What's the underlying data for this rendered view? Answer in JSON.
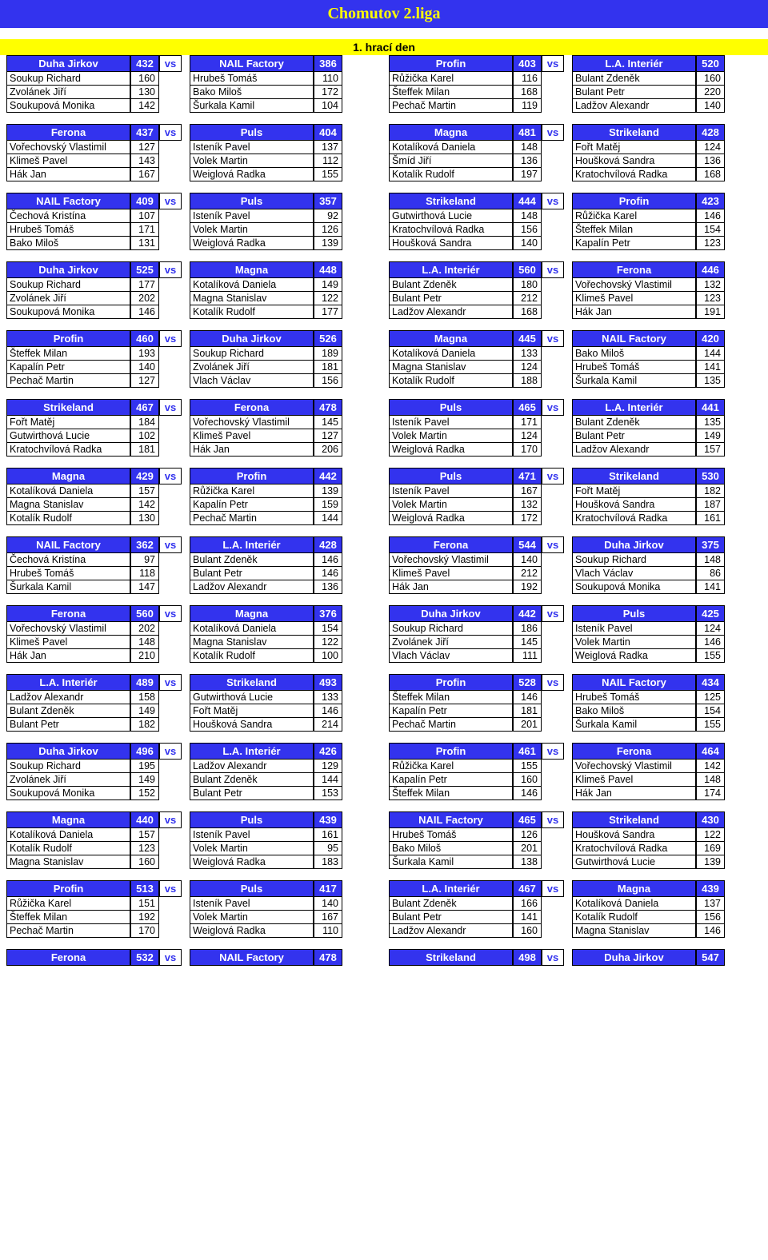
{
  "title": "Chomutov 2.liga",
  "day": "1. hrací den",
  "vs": "vs",
  "left_matches": [
    {
      "ta": "Duha Jirkov",
      "sa": 432,
      "tb": "NAIL Factory",
      "sb": 386,
      "pa": [
        [
          "Soukup Richard",
          160
        ],
        [
          "Zvolánek Jiří",
          130
        ],
        [
          "Soukupová Monika",
          142
        ]
      ],
      "pb": [
        [
          "Hrubeš Tomáš",
          110
        ],
        [
          "Bako Miloš",
          172
        ],
        [
          "Šurkala Kamil",
          104
        ]
      ]
    },
    {
      "ta": "Ferona",
      "sa": 437,
      "tb": "Puls",
      "sb": 404,
      "pa": [
        [
          "Vořechovský Vlastimil",
          127
        ],
        [
          "Klimeš Pavel",
          143
        ],
        [
          "Hák Jan",
          167
        ]
      ],
      "pb": [
        [
          "Isteník Pavel",
          137
        ],
        [
          "Volek Martin",
          112
        ],
        [
          "Weiglová Radka",
          155
        ]
      ]
    },
    {
      "ta": "NAIL Factory",
      "sa": 409,
      "tb": "Puls",
      "sb": 357,
      "pa": [
        [
          "Čechová Kristína",
          107
        ],
        [
          "Hrubeš Tomáš",
          171
        ],
        [
          "Bako Miloš",
          131
        ]
      ],
      "pb": [
        [
          "Isteník Pavel",
          92
        ],
        [
          "Volek Martin",
          126
        ],
        [
          "Weiglová Radka",
          139
        ]
      ]
    },
    {
      "ta": "Duha Jirkov",
      "sa": 525,
      "tb": "Magna",
      "sb": 448,
      "pa": [
        [
          "Soukup Richard",
          177
        ],
        [
          "Zvolánek Jiří",
          202
        ],
        [
          "Soukupová Monika",
          146
        ]
      ],
      "pb": [
        [
          "Kotalíková Daniela",
          149
        ],
        [
          "Magna Stanislav",
          122
        ],
        [
          "Kotalík Rudolf",
          177
        ]
      ]
    },
    {
      "ta": "Profin",
      "sa": 460,
      "tb": "Duha Jirkov",
      "sb": 526,
      "pa": [
        [
          "Šteffek Milan",
          193
        ],
        [
          "Kapalín Petr",
          140
        ],
        [
          "Pechač Martin",
          127
        ]
      ],
      "pb": [
        [
          "Soukup Richard",
          189
        ],
        [
          "Zvolánek Jiří",
          181
        ],
        [
          "Vlach Václav",
          156
        ]
      ]
    },
    {
      "ta": "Strikeland",
      "sa": 467,
      "tb": "Ferona",
      "sb": 478,
      "pa": [
        [
          "Fořt Matěj",
          184
        ],
        [
          "Gutwirthová Lucie",
          102
        ],
        [
          "Kratochvílová Radka",
          181
        ]
      ],
      "pb": [
        [
          "Vořechovský Vlastimil",
          145
        ],
        [
          "Klimeš Pavel",
          127
        ],
        [
          "Hák Jan",
          206
        ]
      ]
    },
    {
      "ta": "Magna",
      "sa": 429,
      "tb": "Profin",
      "sb": 442,
      "pa": [
        [
          "Kotalíková Daniela",
          157
        ],
        [
          "Magna Stanislav",
          142
        ],
        [
          "Kotalík Rudolf",
          130
        ]
      ],
      "pb": [
        [
          "Růžička Karel",
          139
        ],
        [
          "Kapalín Petr",
          159
        ],
        [
          "Pechač Martin",
          144
        ]
      ]
    },
    {
      "ta": "NAIL Factory",
      "sa": 362,
      "tb": "L.A. Interiér",
      "sb": 428,
      "pa": [
        [
          "Čechová Kristína",
          97
        ],
        [
          "Hrubeš Tomáš",
          118
        ],
        [
          "Šurkala Kamil",
          147
        ]
      ],
      "pb": [
        [
          "Bulant Zdeněk",
          146
        ],
        [
          "Bulant Petr",
          146
        ],
        [
          "Ladžov Alexandr",
          136
        ]
      ]
    },
    {
      "ta": "Ferona",
      "sa": 560,
      "tb": "Magna",
      "sb": 376,
      "pa": [
        [
          "Vořechovský Vlastimil",
          202
        ],
        [
          "Klimeš Pavel",
          148
        ],
        [
          "Hák Jan",
          210
        ]
      ],
      "pb": [
        [
          "Kotalíková Daniela",
          154
        ],
        [
          "Magna Stanislav",
          122
        ],
        [
          "Kotalík Rudolf",
          100
        ]
      ]
    },
    {
      "ta": "L.A. Interiér",
      "sa": 489,
      "tb": "Strikeland",
      "sb": 493,
      "pa": [
        [
          "Ladžov Alexandr",
          158
        ],
        [
          "Bulant Zdeněk",
          149
        ],
        [
          "Bulant Petr",
          182
        ]
      ],
      "pb": [
        [
          "Gutwirthová Lucie",
          133
        ],
        [
          "Fořt Matěj",
          146
        ],
        [
          "Houšková Sandra",
          214
        ]
      ]
    },
    {
      "ta": "Duha Jirkov",
      "sa": 496,
      "tb": "L.A. Interiér",
      "sb": 426,
      "pa": [
        [
          "Soukup Richard",
          195
        ],
        [
          "Zvolánek Jiří",
          149
        ],
        [
          "Soukupová Monika",
          152
        ]
      ],
      "pb": [
        [
          "Ladžov Alexandr",
          129
        ],
        [
          "Bulant Zdeněk",
          144
        ],
        [
          "Bulant Petr",
          153
        ]
      ]
    },
    {
      "ta": "Magna",
      "sa": 440,
      "tb": "Puls",
      "sb": 439,
      "pa": [
        [
          "Kotalíková Daniela",
          157
        ],
        [
          "Kotalík Rudolf",
          123
        ],
        [
          "Magna Stanislav",
          160
        ]
      ],
      "pb": [
        [
          "Isteník Pavel",
          161
        ],
        [
          "Volek Martin",
          95
        ],
        [
          "Weiglová Radka",
          183
        ]
      ]
    },
    {
      "ta": "Profin",
      "sa": 513,
      "tb": "Puls",
      "sb": 417,
      "pa": [
        [
          "Růžička Karel",
          151
        ],
        [
          "Šteffek Milan",
          192
        ],
        [
          "Pechač Martin",
          170
        ]
      ],
      "pb": [
        [
          "Isteník Pavel",
          140
        ],
        [
          "Volek Martin",
          167
        ],
        [
          "Weiglová Radka",
          110
        ]
      ]
    },
    {
      "ta": "Ferona",
      "sa": 532,
      "tb": "NAIL Factory",
      "sb": 478,
      "pa": [],
      "pb": []
    }
  ],
  "right_matches": [
    {
      "ta": "Profin",
      "sa": 403,
      "tb": "L.A. Interiér",
      "sb": 520,
      "pa": [
        [
          "Růžička Karel",
          116
        ],
        [
          "Šteffek Milan",
          168
        ],
        [
          "Pechač Martin",
          119
        ]
      ],
      "pb": [
        [
          "Bulant Zdeněk",
          160
        ],
        [
          "Bulant Petr",
          220
        ],
        [
          "Ladžov Alexandr",
          140
        ]
      ]
    },
    {
      "ta": "Magna",
      "sa": 481,
      "tb": "Strikeland",
      "sb": 428,
      "pa": [
        [
          "Kotalíková Daniela",
          148
        ],
        [
          "Šmíd Jiří",
          136
        ],
        [
          "Kotalík Rudolf",
          197
        ]
      ],
      "pb": [
        [
          "Fořt Matěj",
          124
        ],
        [
          "Houšková Sandra",
          136
        ],
        [
          "Kratochvílová Radka",
          168
        ]
      ]
    },
    {
      "ta": "Strikeland",
      "sa": 444,
      "tb": "Profin",
      "sb": 423,
      "pa": [
        [
          "Gutwirthová Lucie",
          148
        ],
        [
          "Kratochvílová Radka",
          156
        ],
        [
          "Houšková Sandra",
          140
        ]
      ],
      "pb": [
        [
          "Růžička Karel",
          146
        ],
        [
          "Šteffek Milan",
          154
        ],
        [
          "Kapalín Petr",
          123
        ]
      ]
    },
    {
      "ta": "L.A. Interiér",
      "sa": 560,
      "tb": "Ferona",
      "sb": 446,
      "pa": [
        [
          "Bulant Zdeněk",
          180
        ],
        [
          "Bulant Petr",
          212
        ],
        [
          "Ladžov Alexandr",
          168
        ]
      ],
      "pb": [
        [
          "Vořechovský Vlastimil",
          132
        ],
        [
          "Klimeš Pavel",
          123
        ],
        [
          "Hák Jan",
          191
        ]
      ]
    },
    {
      "ta": "Magna",
      "sa": 445,
      "tb": "NAIL Factory",
      "sb": 420,
      "pa": [
        [
          "Kotalíková Daniela",
          133
        ],
        [
          "Magna Stanislav",
          124
        ],
        [
          "Kotalík Rudolf",
          188
        ]
      ],
      "pb": [
        [
          "Bako Miloš",
          144
        ],
        [
          "Hrubeš Tomáš",
          141
        ],
        [
          "Šurkala Kamil",
          135
        ]
      ]
    },
    {
      "ta": "Puls",
      "sa": 465,
      "tb": "L.A. Interiér",
      "sb": 441,
      "pa": [
        [
          "Isteník Pavel",
          171
        ],
        [
          "Volek Martin",
          124
        ],
        [
          "Weiglová Radka",
          170
        ]
      ],
      "pb": [
        [
          "Bulant Zdeněk",
          135
        ],
        [
          "Bulant Petr",
          149
        ],
        [
          "Ladžov Alexandr",
          157
        ]
      ]
    },
    {
      "ta": "Puls",
      "sa": 471,
      "tb": "Strikeland",
      "sb": 530,
      "pa": [
        [
          "Isteník Pavel",
          167
        ],
        [
          "Volek Martin",
          132
        ],
        [
          "Weiglová Radka",
          172
        ]
      ],
      "pb": [
        [
          "Fořt Matěj",
          182
        ],
        [
          "Houšková Sandra",
          187
        ],
        [
          "Kratochvílová Radka",
          161
        ]
      ]
    },
    {
      "ta": "Ferona",
      "sa": 544,
      "tb": "Duha Jirkov",
      "sb": 375,
      "pa": [
        [
          "Vořechovský Vlastimil",
          140
        ],
        [
          "Klimeš Pavel",
          212
        ],
        [
          "Hák Jan",
          192
        ]
      ],
      "pb": [
        [
          "Soukup Richard",
          148
        ],
        [
          "Vlach Václav",
          86
        ],
        [
          "Soukupová Monika",
          141
        ]
      ]
    },
    {
      "ta": "Duha Jirkov",
      "sa": 442,
      "tb": "Puls",
      "sb": 425,
      "pa": [
        [
          "Soukup Richard",
          186
        ],
        [
          "Zvolánek Jiří",
          145
        ],
        [
          "Vlach Václav",
          111
        ]
      ],
      "pb": [
        [
          "Isteník Pavel",
          124
        ],
        [
          "Volek Martin",
          146
        ],
        [
          "Weiglová Radka",
          155
        ]
      ]
    },
    {
      "ta": "Profin",
      "sa": 528,
      "tb": "NAIL Factory",
      "sb": 434,
      "pa": [
        [
          "Šteffek Milan",
          146
        ],
        [
          "Kapalín Petr",
          181
        ],
        [
          "Pechač Martin",
          201
        ]
      ],
      "pb": [
        [
          "Hrubeš Tomáš",
          125
        ],
        [
          "Bako Miloš",
          154
        ],
        [
          "Šurkala Kamil",
          155
        ]
      ]
    },
    {
      "ta": "Profin",
      "sa": 461,
      "tb": "Ferona",
      "sb": 464,
      "pa": [
        [
          "Růžička Karel",
          155
        ],
        [
          "Kapalín Petr",
          160
        ],
        [
          "Šteffek Milan",
          146
        ]
      ],
      "pb": [
        [
          "Vořechovský Vlastimil",
          142
        ],
        [
          "Klimeš Pavel",
          148
        ],
        [
          "Hák Jan",
          174
        ]
      ]
    },
    {
      "ta": "NAIL Factory",
      "sa": 465,
      "tb": "Strikeland",
      "sb": 430,
      "pa": [
        [
          "Hrubeš Tomáš",
          126
        ],
        [
          "Bako Miloš",
          201
        ],
        [
          "Šurkala Kamil",
          138
        ]
      ],
      "pb": [
        [
          "Houšková Sandra",
          122
        ],
        [
          "Kratochvílová Radka",
          169
        ],
        [
          "Gutwirthová Lucie",
          139
        ]
      ]
    },
    {
      "ta": "L.A. Interiér",
      "sa": 467,
      "tb": "Magna",
      "sb": 439,
      "pa": [
        [
          "Bulant Zdeněk",
          166
        ],
        [
          "Bulant Petr",
          141
        ],
        [
          "Ladžov Alexandr",
          160
        ]
      ],
      "pb": [
        [
          "Kotalíková Daniela",
          137
        ],
        [
          "Kotalík Rudolf",
          156
        ],
        [
          "Magna Stanislav",
          146
        ]
      ]
    },
    {
      "ta": "Strikeland",
      "sa": 498,
      "tb": "Duha Jirkov",
      "sb": 547,
      "pa": [],
      "pb": []
    }
  ]
}
